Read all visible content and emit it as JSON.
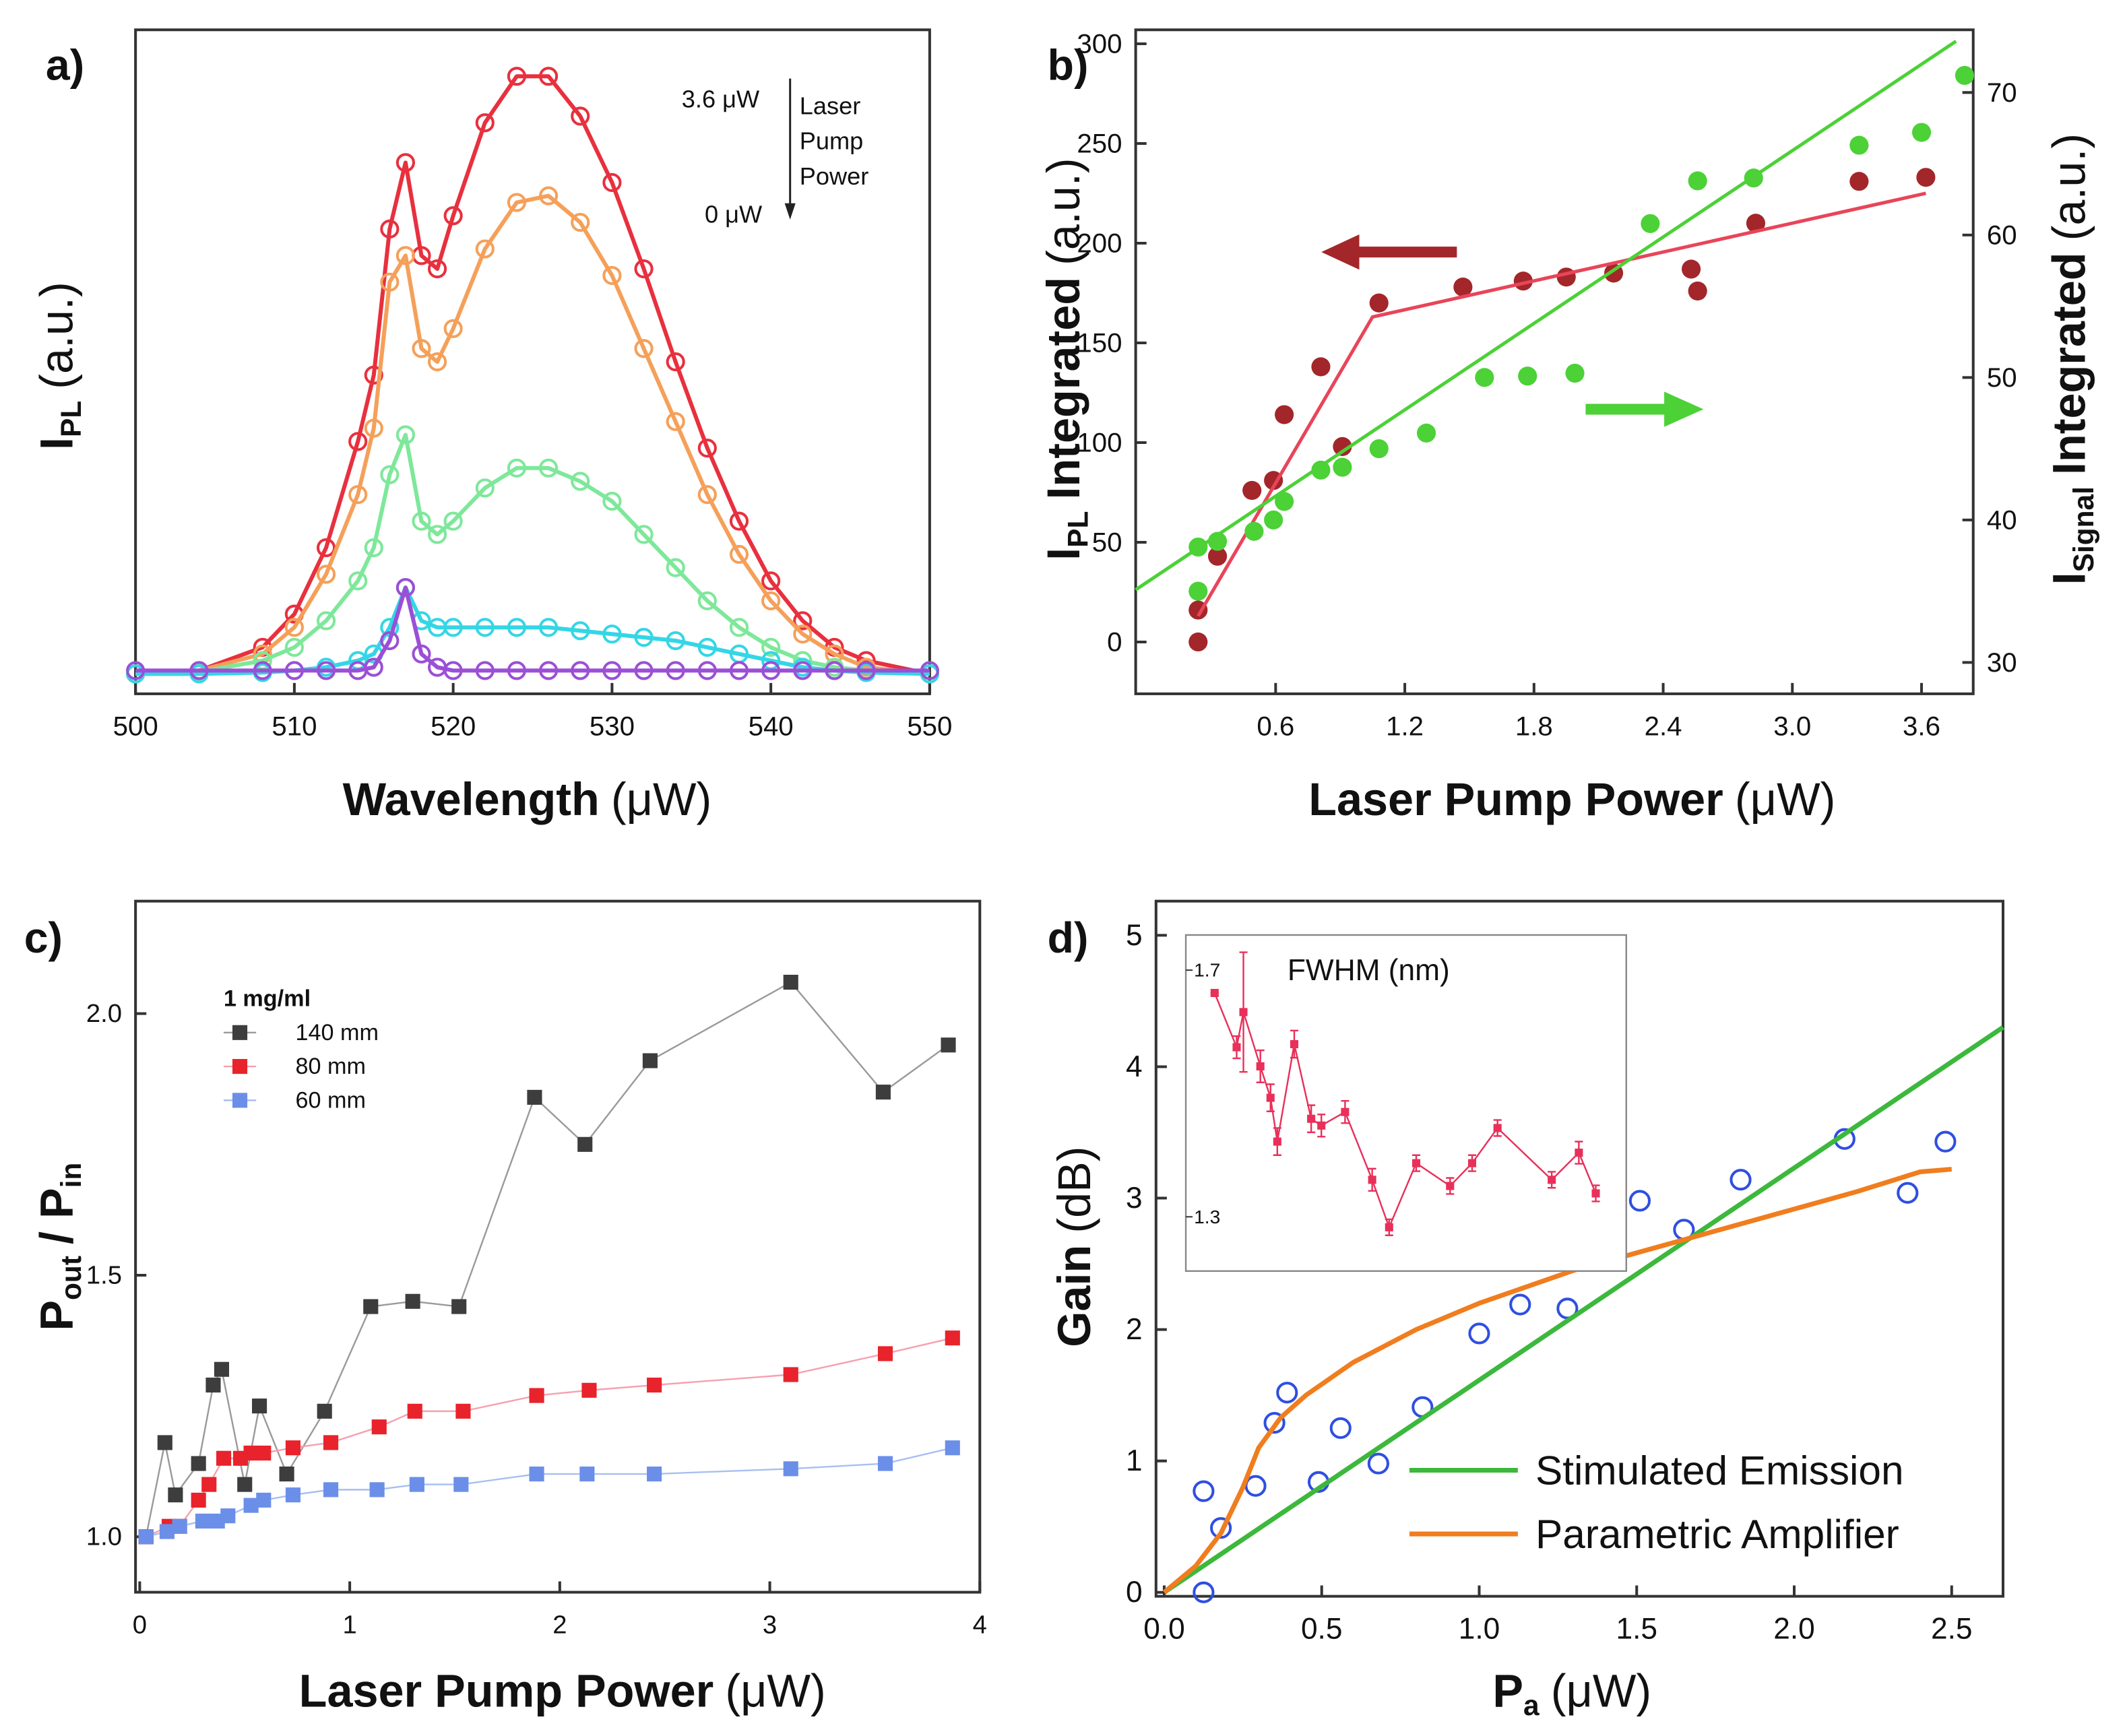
{
  "chart_data": [
    {
      "type": "line",
      "label": "a)",
      "x": [
        500,
        504,
        508,
        510,
        512,
        514,
        515,
        516,
        517,
        518,
        519,
        520,
        522,
        524,
        526,
        528,
        530,
        532,
        534,
        536,
        538,
        540,
        542,
        544,
        546,
        550
      ],
      "xlim": [
        500,
        550
      ],
      "xticks": [
        500,
        510,
        520,
        530,
        540,
        550
      ],
      "ylim": [
        0,
        100
      ],
      "xlabel": "Wavelength",
      "xlabel_unit": "(μW)",
      "ylabel": "I",
      "ylabel_sub": "PL",
      "ylabel_unit": "(a.u.)",
      "annotations": [
        "3.6 μW",
        "0 μW",
        "Laser",
        "Pump",
        "Power"
      ],
      "series": [
        {
          "color": "#e8303e",
          "marker": "open-circle",
          "line": true,
          "values": [
            3,
            3.5,
            7,
            12,
            22,
            38,
            48,
            70,
            80,
            66,
            64,
            72,
            86,
            93,
            93,
            87,
            77,
            64,
            50,
            37,
            26,
            17,
            11,
            7,
            5,
            3
          ]
        },
        {
          "color": "#f5a05a",
          "marker": "open-circle",
          "line": true,
          "values": [
            3,
            3.5,
            6,
            10,
            18,
            30,
            40,
            62,
            66,
            52,
            50,
            55,
            67,
            74,
            75,
            71,
            63,
            52,
            41,
            30,
            21,
            14,
            9,
            6,
            4,
            3
          ]
        },
        {
          "color": "#7ee89a",
          "marker": "open-circle",
          "line": true,
          "values": [
            3,
            3.3,
            5,
            7,
            11,
            17,
            22,
            33,
            39,
            26,
            24,
            26,
            31,
            34,
            34,
            32,
            29,
            24,
            19,
            14,
            10,
            7,
            5,
            4,
            3.5,
            3
          ]
        },
        {
          "color": "#34d6e6",
          "marker": "open-circle",
          "line": true,
          "values": [
            3,
            3,
            3.2,
            3.5,
            4,
            5,
            6,
            10,
            16,
            11,
            10,
            10,
            10,
            10,
            10,
            9.5,
            9,
            8.5,
            8,
            7,
            6,
            5,
            4,
            3.5,
            3.2,
            3
          ]
        },
        {
          "color": "#9b4fd6",
          "marker": "open-circle",
          "line": true,
          "values": [
            3.5,
            3.5,
            3.5,
            3.5,
            3.5,
            3.5,
            4,
            8,
            16,
            6,
            4,
            3.5,
            3.5,
            3.5,
            3.5,
            3.5,
            3.5,
            3.5,
            3.5,
            3.5,
            3.5,
            3.5,
            3.5,
            3.5,
            3.5,
            3.5
          ]
        }
      ]
    },
    {
      "type": "scatter",
      "label": "b)",
      "xlim": [
        -0.05,
        3.84
      ],
      "xticks": [
        0.6,
        1.2,
        1.8,
        2.4,
        {
          "value": 3.0,
          "label": "3.0"
        },
        3.6
      ],
      "ylim": [
        -26,
        307
      ],
      "yticks": [
        0,
        50,
        100,
        150,
        200,
        250,
        300
      ],
      "y2lim": [
        27.8,
        74.4
      ],
      "y2ticks": [
        30,
        40,
        50,
        60,
        70
      ],
      "xlabel": "Laser Pump Power",
      "xlabel_unit": "(μW)",
      "ylabel": "I",
      "ylabel_sub": "PL",
      "ylabel_rest": "Integrated",
      "ylabel_unit": "(a.u.)",
      "ylabel_color": "#a3262a",
      "y2label": "I",
      "y2label_sub": "Signal",
      "y2label_rest": "Integrated",
      "y2label_unit": "(a.u.)",
      "y2label_color": "#4cd137",
      "series": [
        {
          "color": "#a3262a",
          "marker": "circle",
          "x": [
            0.24,
            0.24,
            0.33,
            0.49,
            0.59,
            0.64,
            0.81,
            0.91,
            1.08,
            1.47,
            1.75,
            1.95,
            2.17,
            2.53,
            2.56,
            2.83,
            3.31,
            3.62
          ],
          "values": [
            0,
            16,
            43,
            76,
            81,
            114,
            138,
            98,
            170,
            178,
            181,
            183,
            185,
            187,
            176,
            210,
            231,
            233
          ]
        },
        {
          "color": "#e8455a",
          "line": true,
          "x": [
            0.24,
            1.05,
            3.62
          ],
          "values": [
            13,
            163,
            225
          ]
        },
        {
          "color": "#4cd137",
          "marker": "circle",
          "axis": "y2",
          "x": [
            0.24,
            0.24,
            0.33,
            0.5,
            0.59,
            0.64,
            0.81,
            0.91,
            1.08,
            1.3,
            1.57,
            1.77,
            1.99,
            2.34,
            2.56,
            2.82,
            3.31,
            3.6,
            3.8
          ],
          "values": [
            35.0,
            38.1,
            38.5,
            39.2,
            40.0,
            41.3,
            43.5,
            43.7,
            45.0,
            46.1,
            50.0,
            50.1,
            50.3,
            60.8,
            63.8,
            64.0,
            66.3,
            67.2,
            71.2
          ]
        },
        {
          "color": "#4cd137",
          "line": true,
          "axis": "y2",
          "x": [
            -0.05,
            3.76
          ],
          "values": [
            35.1,
            73.6
          ]
        }
      ]
    },
    {
      "type": "line",
      "label": "c)",
      "xlim": [
        -0.02,
        4.0
      ],
      "xticks": [
        0,
        1,
        2,
        3,
        4
      ],
      "ylim": [
        0.894,
        2.215
      ],
      "yticks": [
        {
          "value": 1,
          "label": "1.0"
        },
        1.5,
        {
          "value": 2,
          "label": "2.0"
        }
      ],
      "xlabel": "Laser Pump Power",
      "xlabel_unit": "(μW)",
      "ylabel": "P",
      "ylabel_sub": "out",
      "ylabel_rest": "/ P",
      "ylabel_sub2": "in",
      "legend": "upper left",
      "legend_title": "1 mg/ml",
      "series": [
        {
          "name": "140 mm",
          "color": "#3d3d3d",
          "line_color": "#9a9a9a",
          "marker": "square",
          "line": true,
          "x": [
            0.03,
            0.12,
            0.17,
            0.28,
            0.35,
            0.39,
            0.5,
            0.57,
            0.7,
            0.88,
            1.1,
            1.3,
            1.52,
            1.88,
            2.12,
            2.43,
            3.1,
            3.54,
            3.85
          ],
          "values": [
            1.0,
            1.18,
            1.08,
            1.14,
            1.29,
            1.32,
            1.1,
            1.25,
            1.12,
            1.24,
            1.44,
            1.45,
            1.44,
            1.84,
            1.75,
            1.91,
            2.06,
            1.85,
            1.94
          ]
        },
        {
          "name": "80 mm",
          "color": "#e8232b",
          "line_color": "#f5a0b0",
          "marker": "square",
          "line": true,
          "x": [
            0.03,
            0.14,
            0.19,
            0.28,
            0.33,
            0.4,
            0.48,
            0.53,
            0.59,
            0.73,
            0.91,
            1.14,
            1.31,
            1.54,
            1.89,
            2.14,
            2.45,
            3.1,
            3.55,
            3.87
          ],
          "values": [
            1.0,
            1.02,
            1.02,
            1.07,
            1.1,
            1.15,
            1.15,
            1.16,
            1.16,
            1.17,
            1.18,
            1.21,
            1.24,
            1.24,
            1.27,
            1.28,
            1.29,
            1.31,
            1.35,
            1.38
          ]
        },
        {
          "name": "60 mm",
          "color": "#6b8fe8",
          "line_color": "#a8bff0",
          "marker": "square",
          "line": true,
          "x": [
            0.03,
            0.13,
            0.19,
            0.3,
            0.37,
            0.42,
            0.53,
            0.59,
            0.73,
            0.91,
            1.13,
            1.32,
            1.53,
            1.89,
            2.13,
            2.45,
            3.1,
            3.55,
            3.87
          ],
          "values": [
            1.0,
            1.01,
            1.02,
            1.03,
            1.03,
            1.04,
            1.06,
            1.07,
            1.08,
            1.09,
            1.09,
            1.1,
            1.1,
            1.12,
            1.12,
            1.12,
            1.13,
            1.14,
            1.17
          ]
        }
      ]
    },
    {
      "type": "scatter",
      "label": "d)",
      "xlim": [
        -0.026,
        2.663
      ],
      "xticks": [
        {
          "value": 0,
          "label": "0.0"
        },
        0.5,
        {
          "value": 1,
          "label": "1.0"
        },
        1.5,
        {
          "value": 2,
          "label": "2.0"
        },
        2.5
      ],
      "ylim": [
        -0.03,
        5.26
      ],
      "yticks": [
        0,
        1,
        2,
        3,
        4,
        5
      ],
      "xlabel": "P",
      "xlabel_sub": "a",
      "xlabel_unit": "(μW)",
      "ylabel": "Gain",
      "ylabel_unit": "(dB)",
      "legend": "lower right",
      "series": [
        {
          "color": "#2f4fe0",
          "marker": "open-circle",
          "x": [
            0.125,
            0.125,
            0.18,
            0.29,
            0.35,
            0.39,
            0.49,
            0.56,
            0.68,
            0.82,
            1.0,
            1.13,
            1.28,
            1.51,
            1.65,
            1.83,
            2.16,
            2.36,
            2.48
          ],
          "values": [
            0.77,
            0.0,
            0.49,
            0.81,
            1.29,
            1.52,
            0.84,
            1.25,
            0.98,
            1.41,
            1.97,
            2.19,
            2.16,
            2.98,
            2.76,
            3.14,
            3.45,
            3.04,
            3.43
          ]
        },
        {
          "name": "Stimulated Emission",
          "color": "#3cb83c",
          "line": true,
          "x": [
            0,
            2.663
          ],
          "values": [
            0,
            4.3
          ]
        },
        {
          "name": "Parametric Amplifier",
          "color": "#f07d1e",
          "line": true,
          "x": [
            0,
            0.1,
            0.18,
            0.25,
            0.3,
            0.37,
            0.45,
            0.6,
            0.8,
            1.0,
            1.3,
            1.6,
            1.9,
            2.2,
            2.4,
            2.5
          ],
          "values": [
            0,
            0.2,
            0.45,
            0.8,
            1.1,
            1.33,
            1.5,
            1.75,
            2.0,
            2.2,
            2.45,
            2.65,
            2.85,
            3.05,
            3.2,
            3.22
          ]
        }
      ],
      "inset": {
        "type": "line",
        "title": "FWHM (nm)",
        "xlim": [
          0,
          2.6
        ],
        "ylim": [
          1.212,
          1.757
        ],
        "yticks": [
          1.3,
          1.7
        ],
        "series": [
          {
            "color": "#e8305a",
            "marker": "square",
            "line": true,
            "x": [
              0.17,
              0.3,
              0.34,
              0.44,
              0.5,
              0.54,
              0.64,
              0.74,
              0.8,
              0.94,
              1.1,
              1.2,
              1.36,
              1.56,
              1.69,
              1.84,
              2.16,
              2.32,
              2.42
            ],
            "values": [
              1.663,
              1.575,
              1.632,
              1.544,
              1.493,
              1.422,
              1.58,
              1.459,
              1.448,
              1.47,
              1.36,
              1.283,
              1.387,
              1.35,
              1.387,
              1.444,
              1.36,
              1.404,
              1.338
            ],
            "errors": [
              0,
              0.018,
              0.097,
              0.026,
              0.022,
              0.022,
              0.022,
              0.022,
              0.018,
              0.018,
              0.018,
              0.013,
              0.013,
              0.013,
              0.013,
              0.013,
              0.013,
              0.018,
              0.013
            ]
          }
        ]
      }
    }
  ]
}
